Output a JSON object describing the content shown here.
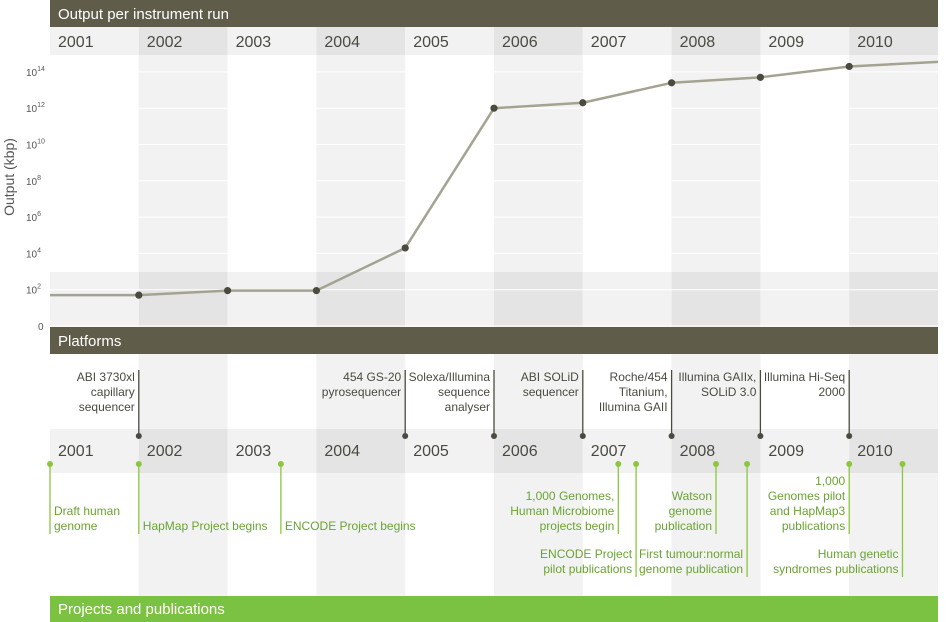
{
  "headers": {
    "output": "Output per instrument run",
    "platforms": "Platforms",
    "projects": "Projects and publications"
  },
  "years": [
    "2001",
    "2002",
    "2003",
    "2004",
    "2005",
    "2006",
    "2007",
    "2008",
    "2009",
    "2010"
  ],
  "colors": {
    "header_dark": "#5f5d4a",
    "header_green": "#7cc242",
    "line": "#a4a392",
    "marker": "#4a4a3e",
    "green": "#8cc63f",
    "band_a": "#f2f2f2",
    "band_b": "#e4e4e4"
  },
  "chart_data": {
    "type": "line",
    "title": "Output per instrument run",
    "ylabel": "Output (kbp)",
    "yscale": "log",
    "y_ticks": [
      {
        "value": 0,
        "base": "0",
        "exp": ""
      },
      {
        "value": 2,
        "base": "10",
        "exp": "2"
      },
      {
        "value": 4,
        "base": "10",
        "exp": "4"
      },
      {
        "value": 6,
        "base": "10",
        "exp": "6"
      },
      {
        "value": 8,
        "base": "10",
        "exp": "8"
      },
      {
        "value": 10,
        "base": "10",
        "exp": "10"
      },
      {
        "value": 12,
        "base": "10",
        "exp": "12"
      },
      {
        "value": 14,
        "base": "10",
        "exp": "14"
      }
    ],
    "ylim": [
      0,
      15
    ],
    "xlim": [
      2001.0,
      2011.0
    ],
    "grid": true,
    "points": [
      {
        "x": 2001.0,
        "y": 1.7
      },
      {
        "x": 2002.0,
        "y": 1.7,
        "marker": true
      },
      {
        "x": 2003.0,
        "y": 1.95,
        "marker": true
      },
      {
        "x": 2004.0,
        "y": 1.95,
        "marker": true
      },
      {
        "x": 2005.0,
        "y": 4.3,
        "marker": true
      },
      {
        "x": 2006.0,
        "y": 12.0,
        "marker": true
      },
      {
        "x": 2007.0,
        "y": 12.3,
        "marker": true
      },
      {
        "x": 2008.0,
        "y": 13.4,
        "marker": true
      },
      {
        "x": 2009.0,
        "y": 13.7,
        "marker": true
      },
      {
        "x": 2010.0,
        "y": 14.3,
        "marker": true
      },
      {
        "x": 2011.0,
        "y": 14.55
      }
    ]
  },
  "platforms": [
    {
      "x": 2002.0,
      "lines": [
        "ABI 3730xl",
        "capillary",
        "sequencer"
      ]
    },
    {
      "x": 2005.0,
      "lines": [
        "454 GS-20",
        "pyrosequencer"
      ]
    },
    {
      "x": 2006.0,
      "lines": [
        "Solexa/Illumina",
        "sequence",
        "analyser"
      ]
    },
    {
      "x": 2007.0,
      "lines": [
        "ABI SOLiD",
        "sequencer"
      ]
    },
    {
      "x": 2008.0,
      "lines": [
        "Roche/454",
        "Titanium,",
        "Illumina GAII"
      ]
    },
    {
      "x": 2009.0,
      "lines": [
        "Illumina GAIIx,",
        "SOLiD 3.0"
      ]
    },
    {
      "x": 2010.0,
      "lines": [
        "Illumina Hi-Seq",
        "2000"
      ]
    }
  ],
  "projects": [
    {
      "x": 2001.0,
      "align": "start",
      "lines": [
        "Draft human",
        "genome"
      ]
    },
    {
      "x": 2002.0,
      "align": "start",
      "lines": [
        "HapMap Project begins"
      ]
    },
    {
      "x": 2003.6,
      "align": "start",
      "lines": [
        "ENCODE Project begins"
      ]
    },
    {
      "x": 2007.4,
      "align": "end",
      "lines": [
        "1,000 Genomes,",
        "Human Microbiome",
        "projects begin"
      ]
    },
    {
      "x": 2007.6,
      "align": "end",
      "lines": [
        "ENCODE Project",
        "pilot publications"
      ]
    },
    {
      "x": 2008.5,
      "align": "end",
      "lines": [
        "Watson",
        "genome",
        "publication"
      ]
    },
    {
      "x": 2008.85,
      "align": "end",
      "lines": [
        "First tumour:normal",
        "genome publication"
      ]
    },
    {
      "x": 2010.0,
      "align": "end",
      "lines": [
        "1,000",
        "Genomes pilot",
        "and HapMap3",
        "publications"
      ]
    },
    {
      "x": 2010.6,
      "align": "end",
      "lines": [
        "Human genetic",
        "syndromes publications"
      ]
    }
  ]
}
